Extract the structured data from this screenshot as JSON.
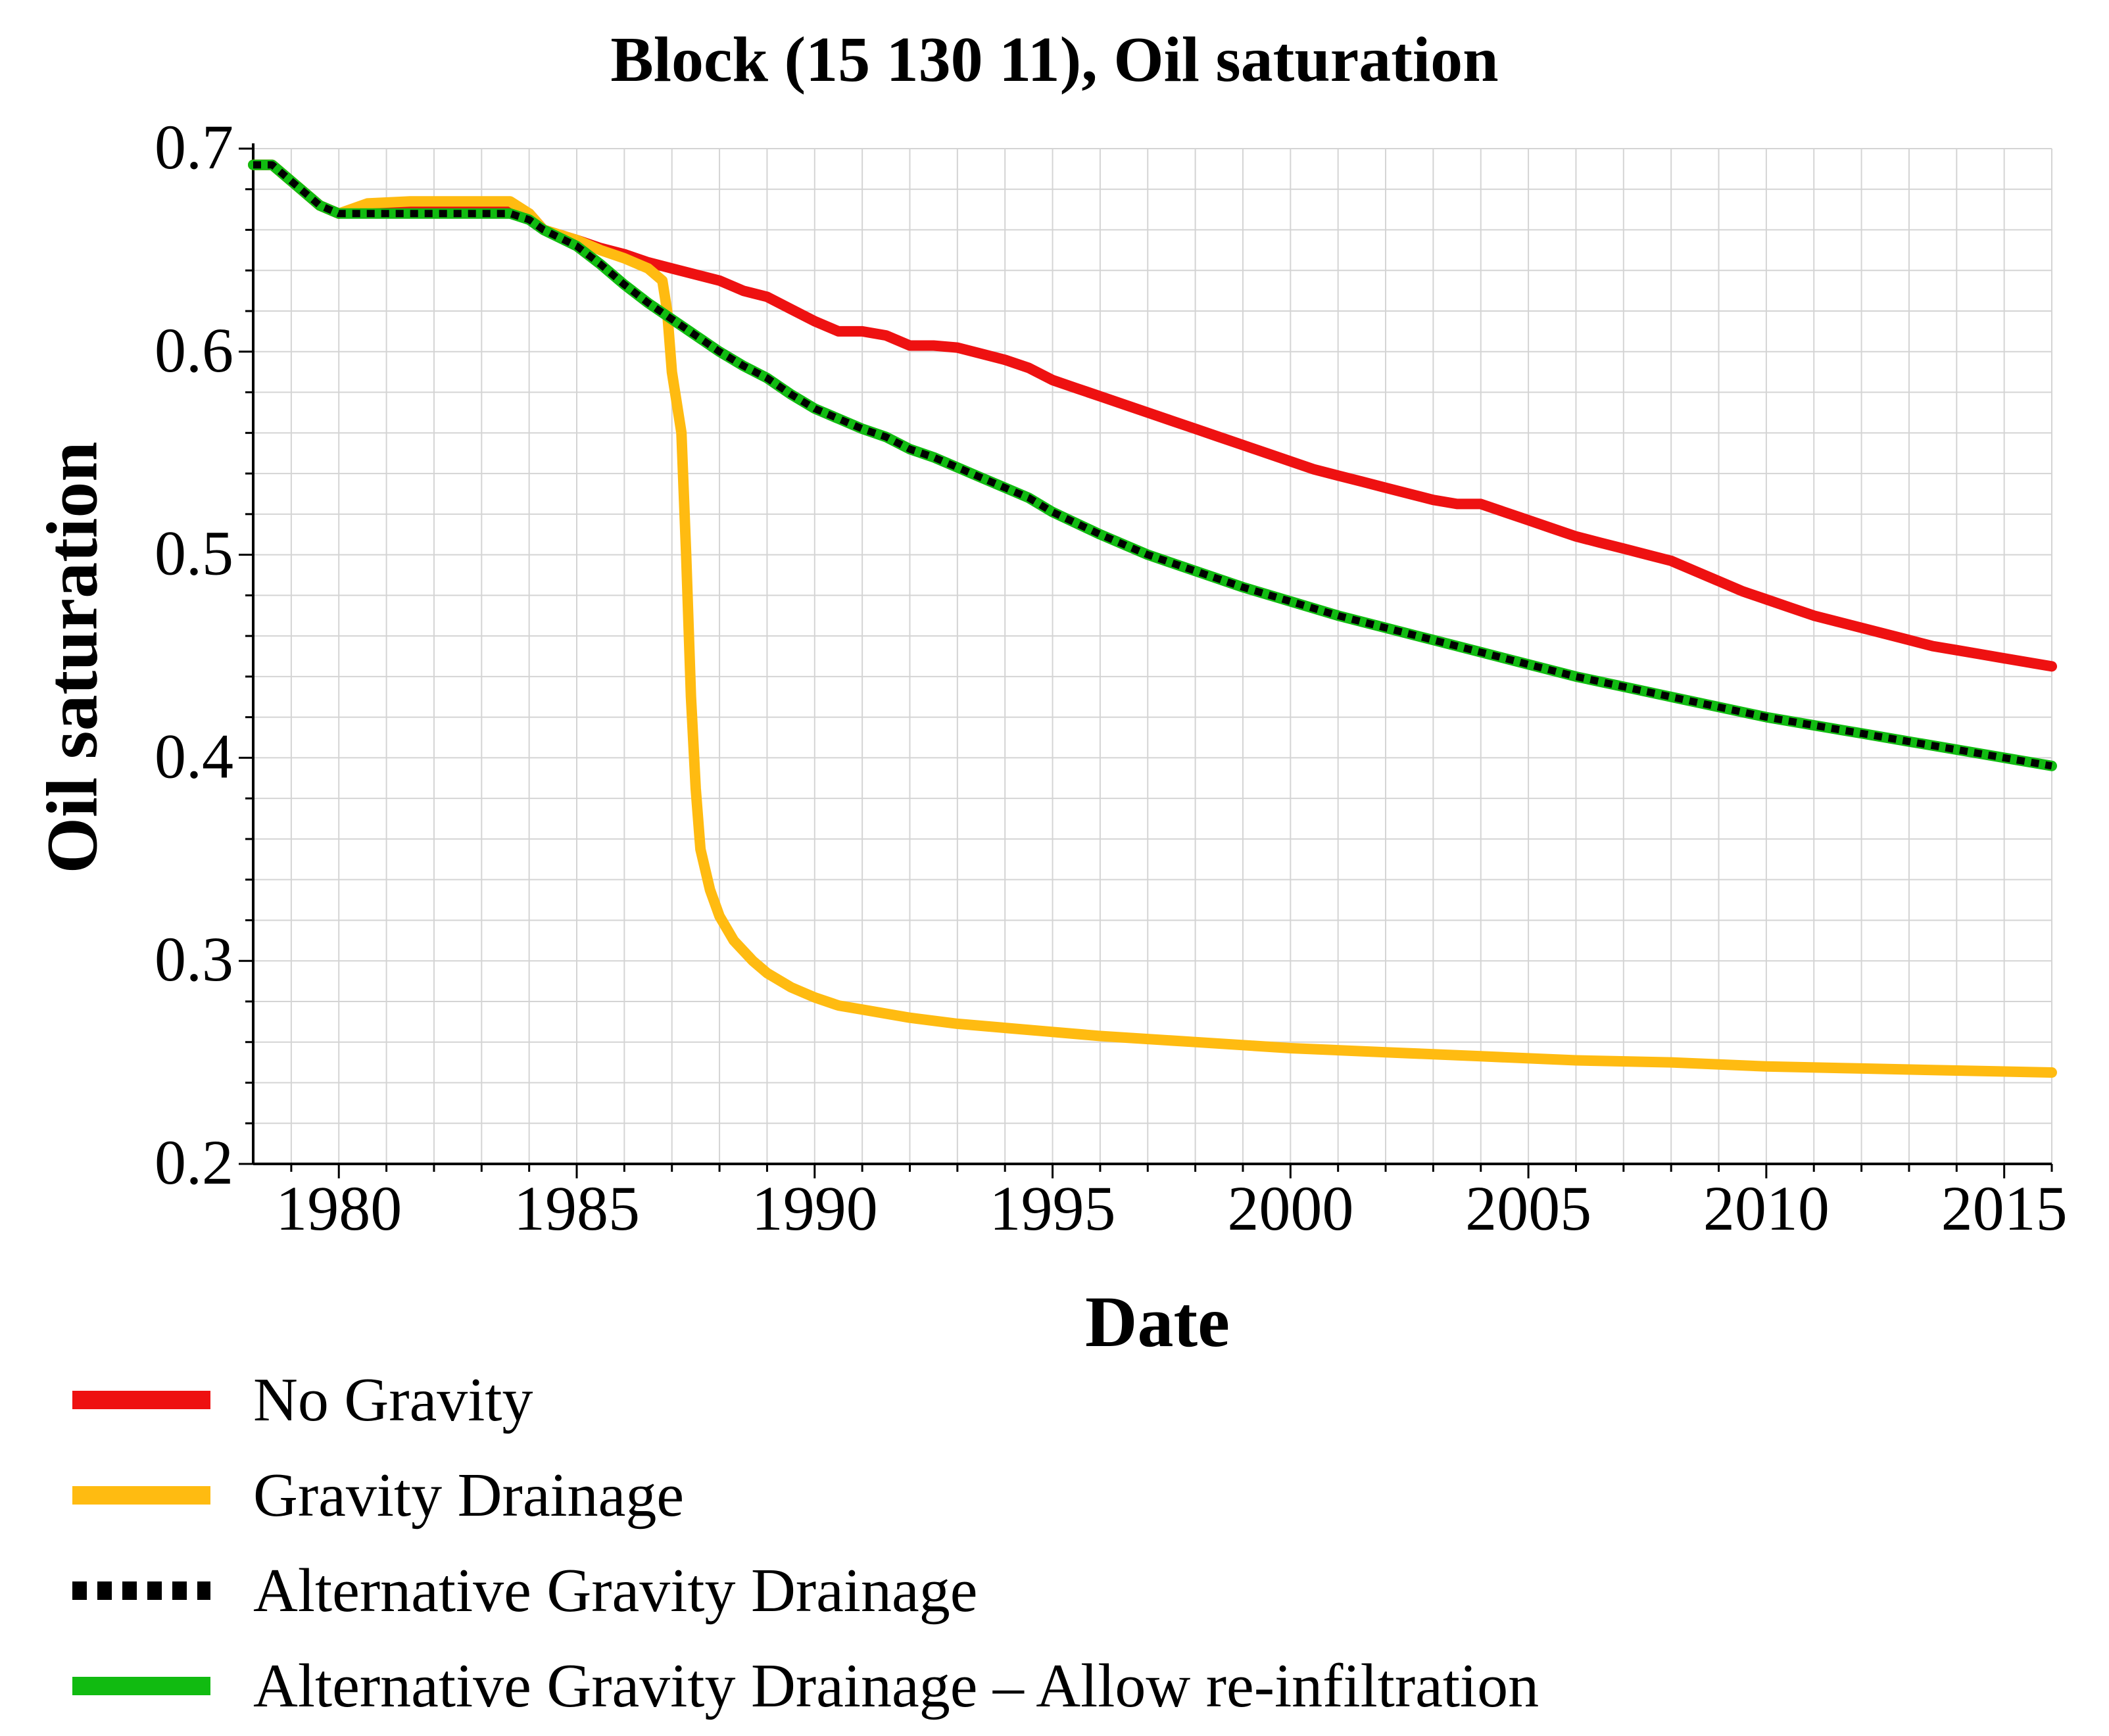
{
  "chart_data": {
    "type": "line",
    "title": "Block  (15 130 11), Oil saturation",
    "xlabel": "Date",
    "ylabel": "Oil saturation",
    "xlim": [
      1978.2,
      2016
    ],
    "ylim": [
      0.2,
      0.7
    ],
    "x_ticks": [
      1980,
      1985,
      1990,
      1995,
      2000,
      2005,
      2010,
      2015
    ],
    "y_ticks": [
      0.2,
      0.3,
      0.4,
      0.5,
      0.6,
      0.7
    ],
    "x_tick_labels": [
      "1980",
      "1985",
      "1990",
      "1995",
      "2000",
      "2005",
      "2010",
      "2015"
    ],
    "y_tick_labels": [
      "0.2",
      "0.3",
      "0.4",
      "0.5",
      "0.6",
      "0.7"
    ],
    "x_minor_step": 1,
    "y_minor_step": 0.02,
    "grid": true,
    "legend_position": "bottom",
    "series": [
      {
        "name": "No Gravity",
        "color": "#ee1111",
        "style": "solid",
        "x": [
          1978.2,
          1978.6,
          1979.1,
          1979.6,
          1980,
          1980.6,
          1981.5,
          1982.5,
          1983.6,
          1984,
          1984.3,
          1985,
          1985.5,
          1986,
          1986.5,
          1987,
          1987.5,
          1988,
          1988.5,
          1989,
          1989.5,
          1990,
          1990.5,
          1991,
          1991.5,
          1992,
          1992.5,
          1993,
          1993.5,
          1994,
          1994.5,
          1995,
          1995.5,
          1996,
          1996.5,
          1997,
          1997.5,
          1998,
          1998.5,
          1999,
          1999.5,
          2000,
          2000.5,
          2001,
          2001.5,
          2002,
          2002.5,
          2003,
          2003.5,
          2004,
          2004.5,
          2005,
          2005.5,
          2006,
          2006.5,
          2007,
          2007.5,
          2008,
          2008.5,
          2009,
          2009.5,
          2010,
          2010.5,
          2011,
          2011.5,
          2012,
          2012.5,
          2013,
          2013.5,
          2014,
          2014.5,
          2015,
          2015.5,
          2016
        ],
        "values": [
          0.692,
          0.692,
          0.682,
          0.672,
          0.668,
          0.672,
          0.673,
          0.673,
          0.673,
          0.668,
          0.66,
          0.655,
          0.651,
          0.648,
          0.644,
          0.641,
          0.638,
          0.635,
          0.63,
          0.627,
          0.621,
          0.615,
          0.61,
          0.61,
          0.608,
          0.603,
          0.603,
          0.602,
          0.599,
          0.596,
          0.592,
          0.586,
          0.582,
          0.578,
          0.574,
          0.57,
          0.566,
          0.562,
          0.558,
          0.554,
          0.55,
          0.546,
          0.542,
          0.539,
          0.536,
          0.533,
          0.53,
          0.527,
          0.525,
          0.525,
          0.521,
          0.517,
          0.513,
          0.509,
          0.506,
          0.503,
          0.5,
          0.497,
          0.492,
          0.487,
          0.482,
          0.478,
          0.474,
          0.47,
          0.467,
          0.464,
          0.461,
          0.458,
          0.455,
          0.453,
          0.451,
          0.449,
          0.447,
          0.445
        ]
      },
      {
        "name": "Gravity Drainage",
        "color": "#ffbb11",
        "style": "solid",
        "x": [
          1978.2,
          1978.6,
          1979.1,
          1979.6,
          1980,
          1980.6,
          1981.5,
          1982.5,
          1983.6,
          1984,
          1984.3,
          1985,
          1985.5,
          1986,
          1986.5,
          1986.8,
          1986.9,
          1987,
          1987.2,
          1987.3,
          1987.4,
          1987.5,
          1987.6,
          1987.8,
          1988,
          1988.3,
          1988.7,
          1989,
          1989.5,
          1990,
          1990.5,
          1991,
          1992,
          1993,
          1994,
          1995,
          1996,
          1998,
          2000,
          2002,
          2004,
          2006,
          2008,
          2010,
          2012,
          2014,
          2016
        ],
        "values": [
          0.692,
          0.692,
          0.682,
          0.672,
          0.668,
          0.673,
          0.674,
          0.674,
          0.674,
          0.668,
          0.66,
          0.655,
          0.65,
          0.646,
          0.641,
          0.635,
          0.62,
          0.59,
          0.56,
          0.5,
          0.43,
          0.385,
          0.355,
          0.335,
          0.322,
          0.31,
          0.3,
          0.294,
          0.287,
          0.282,
          0.278,
          0.276,
          0.272,
          0.269,
          0.267,
          0.265,
          0.263,
          0.26,
          0.257,
          0.255,
          0.253,
          0.251,
          0.25,
          0.248,
          0.247,
          0.246,
          0.245
        ]
      },
      {
        "name": "Alternative Gravity Drainage – Allow re-infiltration",
        "color": "#11bb11",
        "style": "solid",
        "x": [
          1978.2,
          1978.6,
          1979.1,
          1979.6,
          1980,
          1980.6,
          1981.5,
          1982.5,
          1983.6,
          1984,
          1984.3,
          1985,
          1985.5,
          1986,
          1986.5,
          1987,
          1987.5,
          1988,
          1988.5,
          1989,
          1989.5,
          1990,
          1990.5,
          1991,
          1991.5,
          1992,
          1992.5,
          1993,
          1993.5,
          1994,
          1994.5,
          1995,
          1996,
          1997,
          1998,
          1999,
          2000,
          2001,
          2002,
          2003,
          2004,
          2005,
          2006,
          2007,
          2008,
          2009,
          2010,
          2011,
          2012,
          2013,
          2014,
          2015,
          2016
        ],
        "values": [
          0.692,
          0.692,
          0.682,
          0.672,
          0.668,
          0.668,
          0.668,
          0.668,
          0.668,
          0.665,
          0.66,
          0.652,
          0.643,
          0.633,
          0.624,
          0.616,
          0.608,
          0.6,
          0.593,
          0.587,
          0.579,
          0.572,
          0.567,
          0.562,
          0.558,
          0.552,
          0.548,
          0.543,
          0.538,
          0.533,
          0.528,
          0.521,
          0.51,
          0.5,
          0.492,
          0.484,
          0.477,
          0.47,
          0.464,
          0.458,
          0.452,
          0.446,
          0.44,
          0.435,
          0.43,
          0.425,
          0.42,
          0.416,
          0.412,
          0.408,
          0.404,
          0.4,
          0.396
        ]
      },
      {
        "name": "Alternative Gravity Drainage",
        "color": "#000000",
        "style": "dotted",
        "x": [
          1978.2,
          1978.6,
          1979.1,
          1979.6,
          1980,
          1980.6,
          1981.5,
          1982.5,
          1983.6,
          1984,
          1984.3,
          1985,
          1985.5,
          1986,
          1986.5,
          1987,
          1987.5,
          1988,
          1988.5,
          1989,
          1989.5,
          1990,
          1990.5,
          1991,
          1991.5,
          1992,
          1992.5,
          1993,
          1993.5,
          1994,
          1994.5,
          1995,
          1996,
          1997,
          1998,
          1999,
          2000,
          2001,
          2002,
          2003,
          2004,
          2005,
          2006,
          2007,
          2008,
          2009,
          2010,
          2011,
          2012,
          2013,
          2014,
          2015,
          2016
        ],
        "values": [
          0.692,
          0.692,
          0.682,
          0.672,
          0.668,
          0.668,
          0.668,
          0.668,
          0.668,
          0.665,
          0.66,
          0.652,
          0.643,
          0.633,
          0.624,
          0.616,
          0.608,
          0.6,
          0.593,
          0.587,
          0.579,
          0.572,
          0.567,
          0.562,
          0.558,
          0.552,
          0.548,
          0.543,
          0.538,
          0.533,
          0.528,
          0.521,
          0.51,
          0.5,
          0.492,
          0.484,
          0.477,
          0.47,
          0.464,
          0.458,
          0.452,
          0.446,
          0.44,
          0.435,
          0.43,
          0.425,
          0.42,
          0.416,
          0.412,
          0.408,
          0.404,
          0.4,
          0.396
        ]
      }
    ]
  },
  "legend": {
    "items": [
      {
        "label": "No Gravity",
        "color": "#ee1111",
        "style": "solid"
      },
      {
        "label": "Gravity Drainage",
        "color": "#ffbb11",
        "style": "solid"
      },
      {
        "label": "Alternative Gravity Drainage",
        "color": "#000000",
        "style": "dotted"
      },
      {
        "label": "Alternative Gravity Drainage – Allow re-infiltration",
        "color": "#11bb11",
        "style": "solid"
      }
    ]
  }
}
